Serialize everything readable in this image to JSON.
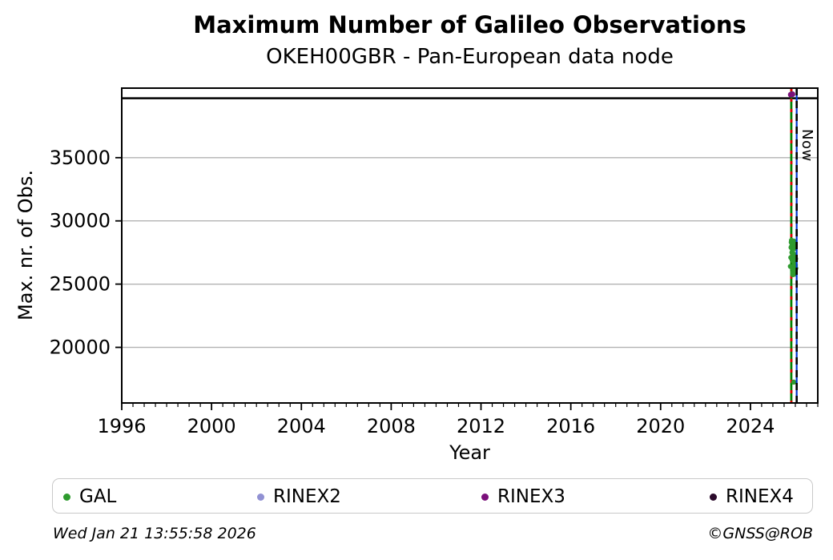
{
  "chart_data": {
    "type": "scatter",
    "title": "Maximum Number of Galileo Observations",
    "subtitle": "OKEH00GBR - Pan-European data node",
    "xlabel": "Year",
    "ylabel": "Max. nr. of Obs.",
    "xlim": [
      1996,
      2027
    ],
    "ylim": [
      15600,
      40500
    ],
    "xticks": [
      1996,
      2000,
      2004,
      2008,
      2012,
      2016,
      2020,
      2024
    ],
    "x_minor_step": 0.5,
    "yticks": [
      20000,
      25000,
      30000,
      35000
    ],
    "grid": "horizontal",
    "grid_color": "#b3b3b3",
    "legend_position": "bottom",
    "series": [
      {
        "name": "GAL",
        "color": "#2e9b2e",
        "marker_r": 3.2,
        "points": [
          [
            2025.78,
            26400
          ],
          [
            2025.8,
            27100
          ],
          [
            2025.81,
            27900
          ],
          [
            2025.82,
            28300
          ],
          [
            2025.83,
            28460
          ],
          [
            2025.84,
            28000
          ],
          [
            2025.85,
            27500
          ],
          [
            2025.86,
            26900
          ],
          [
            2025.87,
            26300
          ],
          [
            2025.88,
            25900
          ],
          [
            2025.89,
            25750
          ],
          [
            2025.9,
            26200
          ],
          [
            2025.91,
            26800
          ],
          [
            2025.92,
            27400
          ],
          [
            2025.93,
            28100
          ],
          [
            2025.94,
            28400
          ],
          [
            2025.95,
            27800
          ],
          [
            2025.96,
            27200
          ],
          [
            2025.97,
            26600
          ],
          [
            2025.98,
            26100
          ],
          [
            2025.99,
            25800
          ],
          [
            2026.0,
            26500
          ],
          [
            2026.01,
            27000
          ],
          [
            2026.02,
            26250
          ],
          [
            2025.93,
            17250
          ]
        ]
      },
      {
        "name": "RINEX2",
        "color": "#9191d3",
        "marker_r": 3.4,
        "points": []
      },
      {
        "name": "RINEX3",
        "color": "#7b107b",
        "marker_r": 3.6,
        "points": [
          [
            2025.8,
            39980
          ],
          [
            2025.87,
            40020
          ]
        ]
      },
      {
        "name": "RINEX4",
        "color": "#2b0b2b",
        "marker_r": 3.4,
        "points": []
      }
    ],
    "ref_lines": {
      "max_line": {
        "y": 39700,
        "color": "#000000"
      },
      "last_obs_line": {
        "x": 2025.82,
        "solid_color": "#008000",
        "dash_color": "#dd0000"
      },
      "now": {
        "x": 2026.06,
        "solid_color": "#0033cc",
        "dash_color": "#000000",
        "label": "Now"
      }
    }
  },
  "legend": {
    "items": [
      {
        "label": "GAL",
        "color": "#2e9b2e"
      },
      {
        "label": "RINEX2",
        "color": "#9191d3"
      },
      {
        "label": "RINEX3",
        "color": "#7b107b"
      },
      {
        "label": "RINEX4",
        "color": "#2b0b2b"
      }
    ]
  },
  "footer": {
    "timestamp": "Wed Jan 21 13:55:58 2026",
    "credit": "©GNSS@ROB"
  }
}
